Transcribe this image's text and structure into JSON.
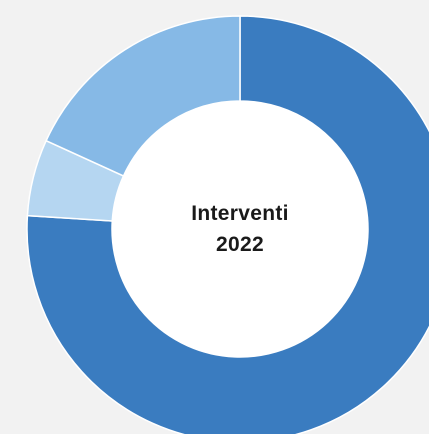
{
  "chart_data": {
    "type": "pie",
    "variant": "donut",
    "center_label": [
      "Interventi",
      "2022"
    ],
    "slices": [
      {
        "value": 76.0,
        "color": "#3a7cc0"
      },
      {
        "value": 5.8,
        "color": "#b5d6f1"
      },
      {
        "value": 18.2,
        "color": "#86b9e6"
      }
    ],
    "start_angle_deg": 0,
    "direction": "clockwise",
    "separator_color": "#ffffff"
  }
}
